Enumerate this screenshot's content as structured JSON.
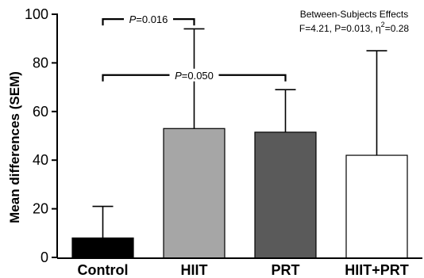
{
  "chart_data": {
    "type": "bar",
    "title": "",
    "xlabel": "",
    "ylabel": "Mean differences (SEM)",
    "ylim": [
      0,
      100
    ],
    "yticks": [
      0,
      20,
      40,
      60,
      80,
      100
    ],
    "categories": [
      "Control",
      "HIIT",
      "PRT",
      "HIIT+PRT"
    ],
    "values": [
      8,
      53,
      51.5,
      42
    ],
    "errors_upper": [
      21,
      94,
      69,
      85
    ],
    "colors": [
      "#000000",
      "#a6a6a6",
      "#5a5a5a",
      "#ffffff"
    ],
    "annotation": {
      "line1": "Between-Subjects Effects",
      "line2_prefix": "F=4.21, P=0.013, η",
      "line2_sup": "2",
      "line2_suffix": "=0.28"
    },
    "comparisons": [
      {
        "from": "Control",
        "to": "HIIT",
        "y": 98,
        "p_italic": "P",
        "p_value": "=0.016"
      },
      {
        "from": "Control",
        "to": "PRT",
        "y": 75,
        "p_italic": "P",
        "p_value": "=0.050"
      }
    ],
    "grid": false
  }
}
